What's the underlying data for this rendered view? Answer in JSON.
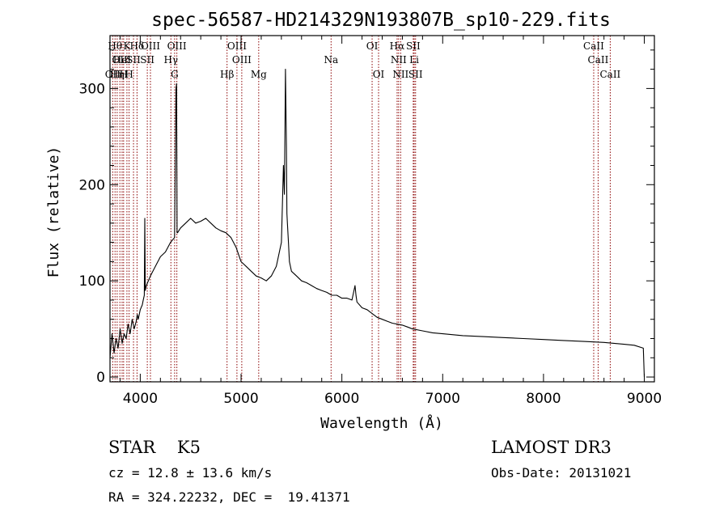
{
  "chart_data": {
    "type": "line",
    "title": "spec-56587-HD214329N193807B_sp10-229.fits",
    "xlabel": "Wavelength (Å)",
    "ylabel": "Flux (relative)",
    "xlim": [
      3700,
      9100
    ],
    "ylim": [
      -5,
      355
    ],
    "xticks": [
      4000,
      5000,
      6000,
      7000,
      8000,
      9000
    ],
    "yticks": [
      0,
      100,
      200,
      300
    ],
    "xtick_labels": [
      "4000",
      "5000",
      "6000",
      "7000",
      "8000",
      "9000"
    ],
    "ytick_labels": [
      "0",
      "100",
      "200",
      "300"
    ],
    "series": [
      {
        "name": "spectrum",
        "x": [
          3700,
          3720,
          3740,
          3760,
          3780,
          3800,
          3820,
          3840,
          3860,
          3880,
          3900,
          3920,
          3940,
          3960,
          3970,
          3980,
          4000,
          4020,
          4030,
          4040,
          4045,
          4050,
          4060,
          4080,
          4100,
          4150,
          4200,
          4250,
          4300,
          4340,
          4355,
          4360,
          4365,
          4370,
          4400,
          4450,
          4500,
          4550,
          4600,
          4650,
          4700,
          4750,
          4800,
          4850,
          4900,
          4950,
          5000,
          5050,
          5100,
          5150,
          5200,
          5250,
          5300,
          5350,
          5400,
          5420,
          5430,
          5440,
          5450,
          5455,
          5460,
          5470,
          5480,
          5500,
          5550,
          5600,
          5650,
          5700,
          5750,
          5800,
          5850,
          5900,
          5950,
          6000,
          6050,
          6100,
          6130,
          6140,
          6150,
          6200,
          6250,
          6300,
          6350,
          6400,
          6450,
          6500,
          6550,
          6600,
          6650,
          6700,
          6800,
          6900,
          7000,
          7200,
          7400,
          7600,
          7800,
          8000,
          8200,
          8400,
          8600,
          8700,
          8800,
          8900,
          8990,
          9000
        ],
        "values": [
          20,
          45,
          25,
          40,
          30,
          50,
          35,
          45,
          40,
          55,
          45,
          60,
          50,
          58,
          65,
          60,
          70,
          75,
          80,
          85,
          165,
          90,
          95,
          100,
          105,
          115,
          125,
          130,
          140,
          145,
          300,
          305,
          150,
          150,
          155,
          160,
          165,
          160,
          162,
          165,
          160,
          155,
          152,
          150,
          145,
          135,
          120,
          115,
          110,
          105,
          103,
          100,
          105,
          115,
          140,
          220,
          190,
          320,
          240,
          170,
          160,
          140,
          120,
          110,
          105,
          100,
          98,
          95,
          92,
          90,
          88,
          85,
          85,
          82,
          82,
          80,
          95,
          85,
          78,
          72,
          70,
          66,
          62,
          60,
          58,
          56,
          55,
          54,
          52,
          50,
          48,
          46,
          45,
          43,
          42,
          41,
          40,
          39,
          38,
          37,
          36,
          35,
          34,
          33,
          30,
          0
        ]
      }
    ],
    "line_labels": [
      {
        "x": 3727,
        "text": "OII",
        "row": 3
      },
      {
        "x": 3750,
        "text": "Hθ",
        "row": 1
      },
      {
        "x": 3771,
        "text": "Hη",
        "row": 3
      },
      {
        "x": 3798,
        "text": "OII",
        "row": 2
      },
      {
        "x": 3820,
        "text": "HeI",
        "row": 2
      },
      {
        "x": 3835,
        "text": "H",
        "row": 3
      },
      {
        "x": 3868,
        "text": "K",
        "row": 1
      },
      {
        "x": 3889,
        "text": "H",
        "row": 3
      },
      {
        "x": 3933,
        "text": "SII",
        "row": 2
      },
      {
        "x": 3968,
        "text": "Hδ",
        "row": 1
      },
      {
        "x": 4070,
        "text": "SII",
        "row": 2
      },
      {
        "x": 4101,
        "text": "OIII",
        "row": 1
      },
      {
        "x": 4304,
        "text": "Hγ",
        "row": 2
      },
      {
        "x": 4341,
        "text": "G",
        "row": 3
      },
      {
        "x": 4363,
        "text": "OIII",
        "row": 1
      },
      {
        "x": 4861,
        "text": "Hβ",
        "row": 3
      },
      {
        "x": 4959,
        "text": "OIII",
        "row": 1
      },
      {
        "x": 5007,
        "text": "OIII",
        "row": 2
      },
      {
        "x": 5175,
        "text": "Mg",
        "row": 3
      },
      {
        "x": 5893,
        "text": "Na",
        "row": 2
      },
      {
        "x": 6300,
        "text": "OI",
        "row": 1
      },
      {
        "x": 6364,
        "text": "OI",
        "row": 3
      },
      {
        "x": 6548,
        "text": "Hα",
        "row": 1
      },
      {
        "x": 6563,
        "text": "NII",
        "row": 2
      },
      {
        "x": 6583,
        "text": "NII",
        "row": 3
      },
      {
        "x": 6708,
        "text": "SII",
        "row": 1
      },
      {
        "x": 6717,
        "text": "Li",
        "row": 2
      },
      {
        "x": 6731,
        "text": "SII",
        "row": 3
      },
      {
        "x": 8498,
        "text": "CaII",
        "row": 1
      },
      {
        "x": 8542,
        "text": "CaII",
        "row": 2
      },
      {
        "x": 8662,
        "text": "CaII",
        "row": 3
      }
    ],
    "line_positions": [
      3727,
      3750,
      3771,
      3798,
      3820,
      3835,
      3868,
      3889,
      3933,
      3968,
      4070,
      4101,
      4304,
      4341,
      4363,
      4861,
      4959,
      5007,
      5175,
      5893,
      6300,
      6364,
      6548,
      6563,
      6583,
      6708,
      6717,
      6731,
      8498,
      8542,
      8662
    ],
    "colors": {
      "axis": "#000000",
      "spectrum": "#000000",
      "line_markers": "#8b0000"
    }
  },
  "info": {
    "class_line": "STAR    K5",
    "survey": "LAMOST DR3",
    "cz": "cz = 12.8 ± 13.6 km/s",
    "obs_date": "Obs-Date: 20131021",
    "coords": "RA = 324.22232, DEC =  19.41371"
  }
}
